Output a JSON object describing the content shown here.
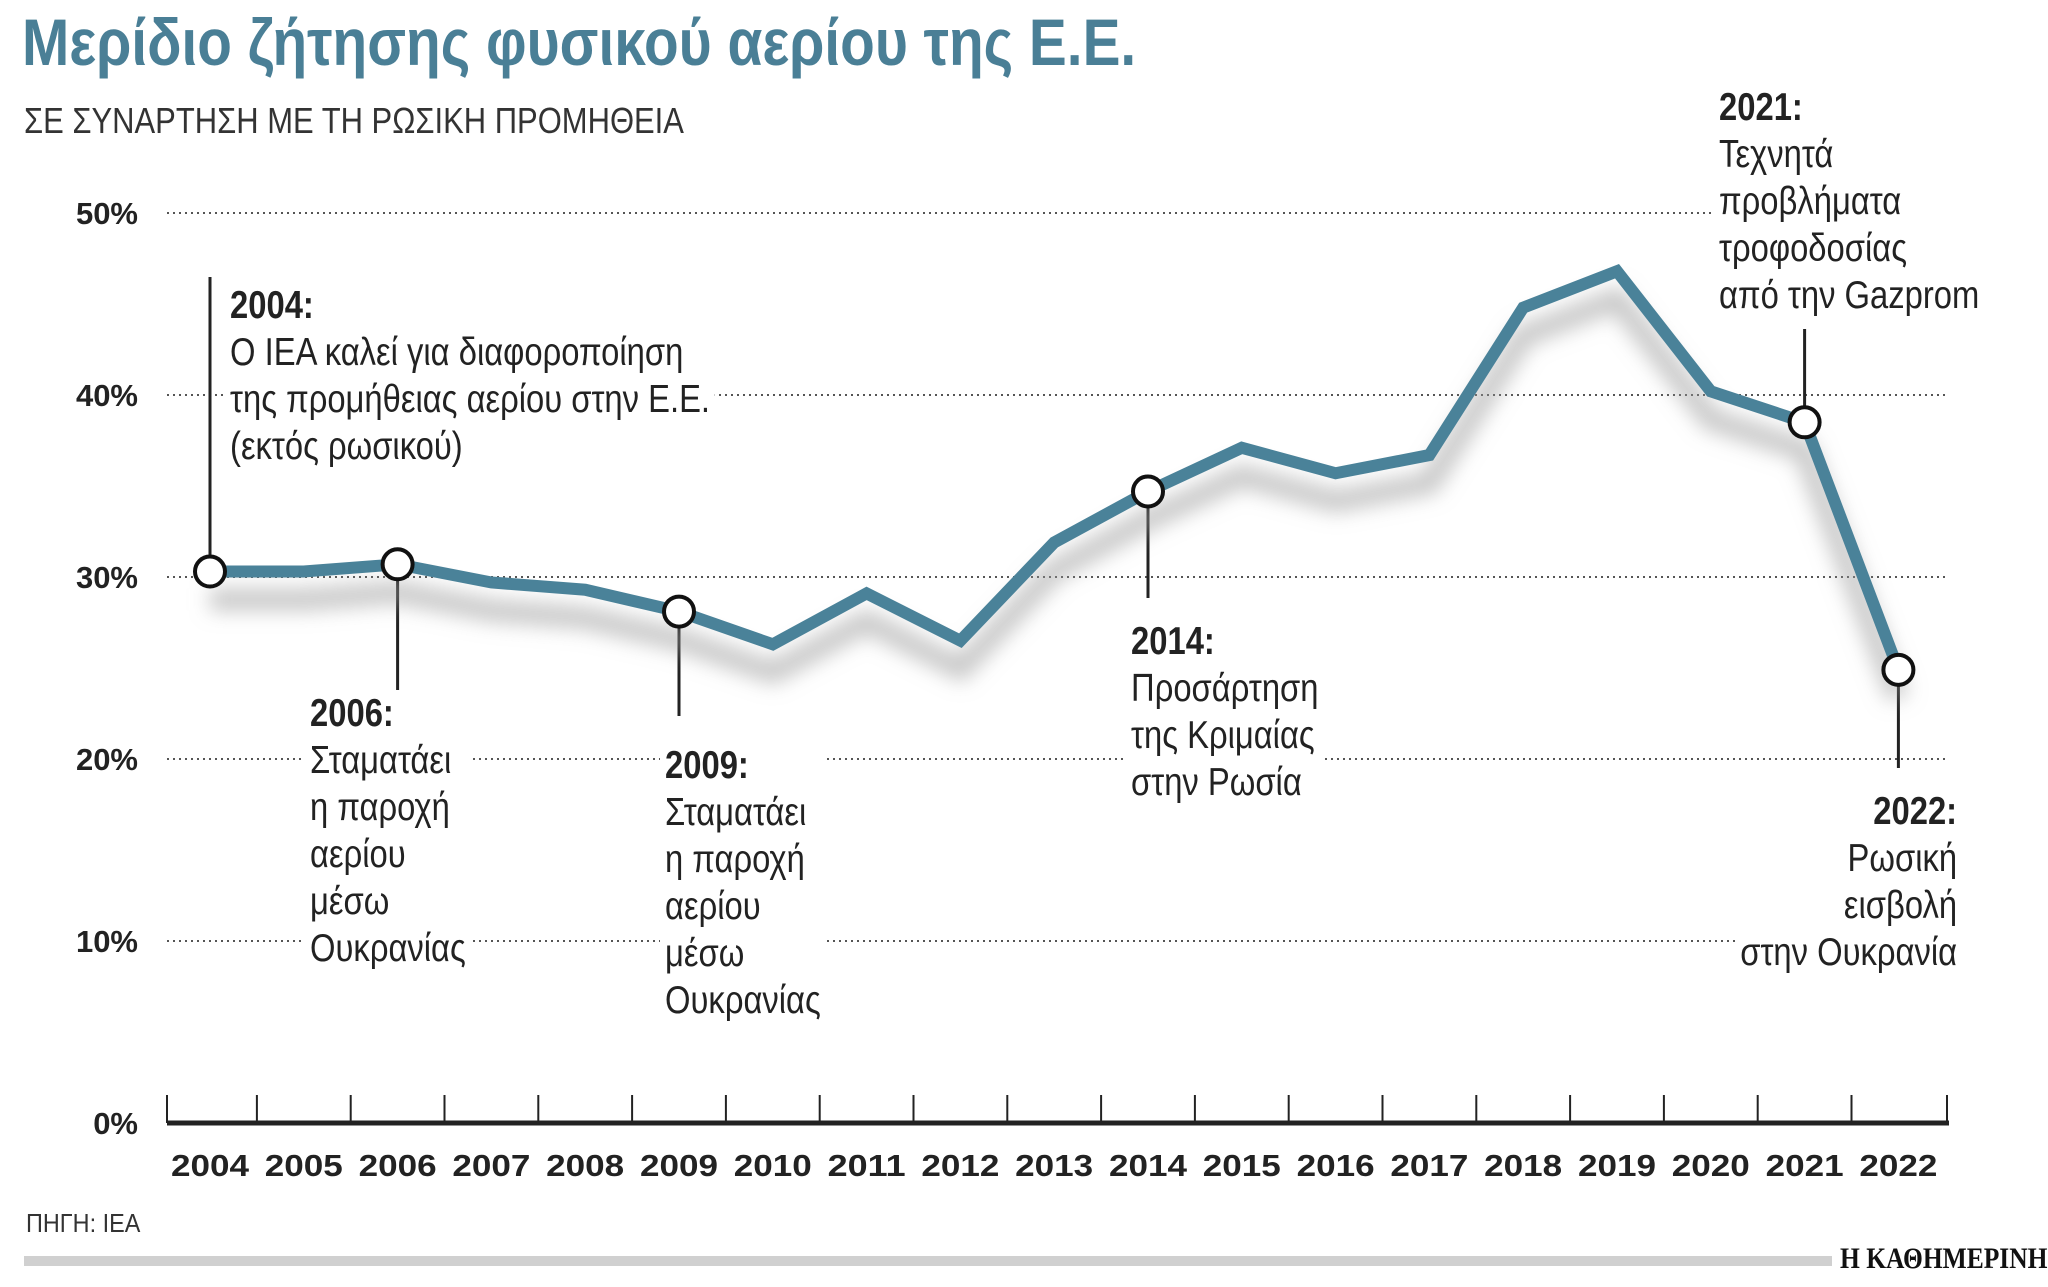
{
  "title": "Μερίδιο ζήτησης φυσικού αερίου της Ε.Ε.",
  "subtitle": "ΣΕ ΣΥΝΑΡΤΗΣΗ ΜΕ ΤΗ ΡΩΣΙΚΗ ΠΡΟΜΗΘΕΙΑ",
  "source": "ΠΗΓΗ: IEA",
  "logo": "Η ΚΑΘΗΜΕΡΙΝΗ",
  "colors": {
    "line": "#4a8299",
    "title": "#4a7f96"
  },
  "annotations": [
    {
      "year": "2004:",
      "lines": [
        "Ο IEA καλεί για διαφοροποίηση",
        "της προμήθειας αερίου στην Ε.Ε.",
        "(εκτός ρωσικού)"
      ]
    },
    {
      "year": "2006:",
      "lines": [
        "Σταματάει",
        "η παροχή",
        "αερίου",
        "μέσω",
        "Ουκρανίας"
      ]
    },
    {
      "year": "2009:",
      "lines": [
        "Σταματάει",
        "η παροχή",
        "αερίου",
        "μέσω",
        "Ουκρανίας"
      ]
    },
    {
      "year": "2014:",
      "lines": [
        "Προσάρτηση",
        "της Κριμαίας",
        "στην Ρωσία"
      ]
    },
    {
      "year": "2021:",
      "lines": [
        "Τεχνητά",
        "προβλήματα",
        "τροφοδοσίας",
        "από την Gazprom"
      ]
    },
    {
      "year": "2022:",
      "lines": [
        "Ρωσική",
        "εισβολή",
        "στην Ουκρανία"
      ]
    }
  ],
  "chart_data": {
    "type": "line",
    "title": "Μερίδιο ζήτησης φυσικού αερίου της Ε.Ε.",
    "subtitle": "ΣΕ ΣΥΝΑΡΤΗΣΗ ΜΕ ΤΗ ΡΩΣΙΚΗ ΠΡΟΜΗΘΕΙΑ",
    "categories": [
      "2004",
      "2005",
      "2006",
      "2007",
      "2008",
      "2009",
      "2010",
      "2011",
      "2012",
      "2013",
      "2014",
      "2015",
      "2016",
      "2017",
      "2018",
      "2019",
      "2020",
      "2021",
      "2022"
    ],
    "values": [
      30.3,
      30.3,
      30.7,
      29.7,
      29.3,
      28.1,
      26.3,
      29.1,
      26.5,
      31.9,
      34.7,
      37.1,
      35.7,
      36.7,
      44.8,
      46.8,
      40.2,
      38.5,
      24.9
    ],
    "marked_years": [
      "2004",
      "2006",
      "2009",
      "2014",
      "2021",
      "2022"
    ],
    "ylim": [
      0,
      50
    ],
    "yticks": [
      "0%",
      "10%",
      "20%",
      "30%",
      "40%",
      "50%"
    ],
    "grid": true,
    "grid_style": "dotted"
  }
}
